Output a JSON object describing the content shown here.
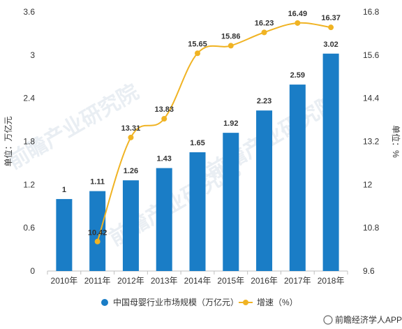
{
  "chart_data": {
    "type": "bar+line",
    "categories": [
      "2010年",
      "2011年",
      "2012年",
      "2013年",
      "2014年",
      "2015年",
      "2016年",
      "2017年",
      "2018年"
    ],
    "series": [
      {
        "name": "中国母婴行业市场规模（万亿元）",
        "type": "bar",
        "axis": "left",
        "values": [
          1,
          1.11,
          1.26,
          1.43,
          1.65,
          1.92,
          2.23,
          2.59,
          3.02
        ],
        "labels": [
          "1",
          "1.11",
          "1.26",
          "1.43",
          "1.65",
          "1.92",
          "2.23",
          "2.59",
          "3.02"
        ]
      },
      {
        "name": "增速（%）",
        "type": "line",
        "axis": "right",
        "values": [
          null,
          10.42,
          13.31,
          13.83,
          15.65,
          15.86,
          16.23,
          16.49,
          16.37
        ],
        "labels": [
          "",
          "10.42",
          "13.31",
          "13.83",
          "15.65",
          "15.86",
          "16.23",
          "16.49",
          "16.37"
        ]
      }
    ],
    "ylabel_left": "单位：万亿元",
    "ylabel_right": "单位：%",
    "ylim_left": [
      0,
      3.6
    ],
    "yticks_left": [
      "0",
      "0.6",
      "1.2",
      "1.8",
      "2.4",
      "3",
      "3.6"
    ],
    "ylim_right": [
      9.6,
      16.8
    ],
    "yticks_right": [
      "9.6",
      "10.8",
      "12",
      "13.2",
      "14.4",
      "15.6",
      "16.8"
    ],
    "grid": false,
    "legend": "bottom",
    "colors": {
      "bar": "#1a7dc6",
      "line": "#f0b323"
    }
  },
  "watermark": "前瞻产业研究院",
  "credit": "前瞻经济学人APP"
}
